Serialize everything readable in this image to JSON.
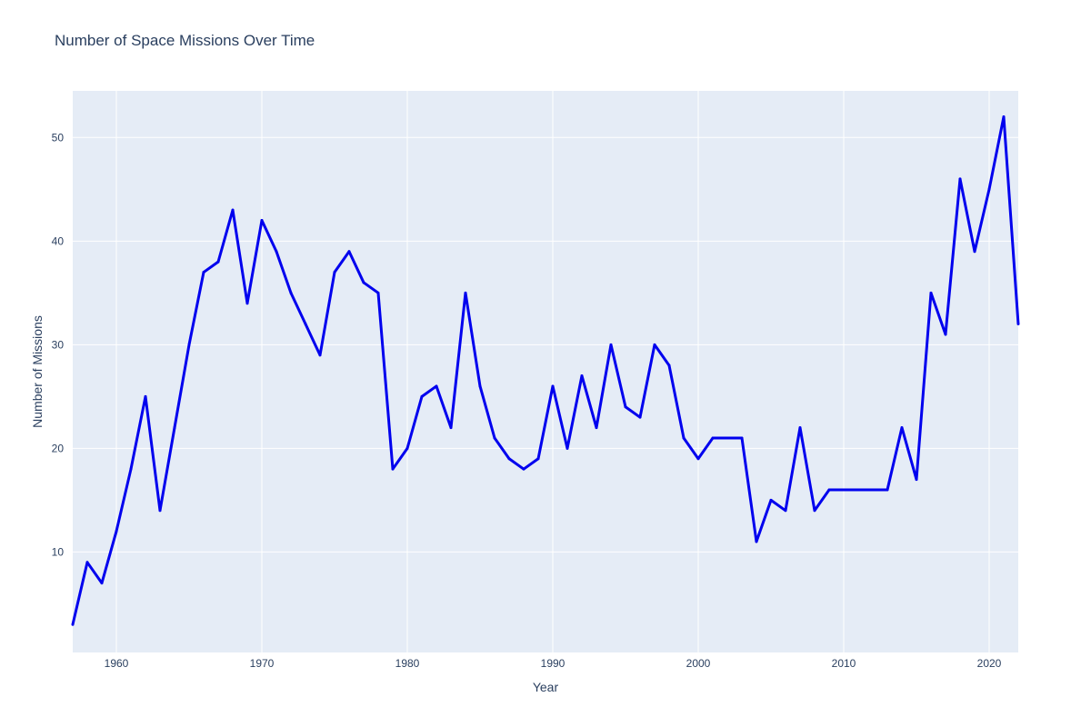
{
  "chart_data": {
    "type": "line",
    "title": "Number of Space Missions Over Time",
    "xlabel": "Year",
    "ylabel": "Number of Missions",
    "xlim": [
      1957,
      2022
    ],
    "ylim": [
      0.3,
      54.5
    ],
    "x_ticks": [
      1960,
      1970,
      1980,
      1990,
      2000,
      2010,
      2020
    ],
    "y_ticks": [
      10,
      20,
      30,
      40,
      50
    ],
    "grid": true,
    "legend": "none",
    "colors": {
      "background": "#e5ecf6",
      "grid": "#ffffff",
      "line": "#0000ee",
      "text": "#2a3f5f"
    },
    "series": [
      {
        "x": [
          1957,
          1958,
          1959,
          1960,
          1961,
          1962,
          1963,
          1964,
          1965,
          1966,
          1967,
          1968,
          1969,
          1970,
          1971,
          1972,
          1973,
          1974,
          1975,
          1976,
          1977,
          1978,
          1979,
          1980,
          1981,
          1982,
          1983,
          1984,
          1985,
          1986,
          1987,
          1988,
          1989,
          1990,
          1991,
          1992,
          1993,
          1994,
          1995,
          1996,
          1997,
          1998,
          1999,
          2000,
          2001,
          2002,
          2003,
          2004,
          2005,
          2006,
          2007,
          2008,
          2009,
          2010,
          2011,
          2012,
          2013,
          2014,
          2015,
          2016,
          2017,
          2018,
          2019,
          2020,
          2021,
          2022
        ],
        "values": [
          3,
          9,
          7,
          12,
          18,
          25,
          14,
          22,
          30,
          37,
          38,
          43,
          34,
          42,
          39,
          35,
          32,
          29,
          37,
          39,
          36,
          35,
          18,
          20,
          25,
          26,
          22,
          35,
          26,
          21,
          19,
          18,
          19,
          26,
          20,
          27,
          22,
          30,
          24,
          23,
          30,
          28,
          21,
          19,
          21,
          21,
          21,
          11,
          15,
          14,
          22,
          14,
          16,
          16,
          16,
          16,
          16,
          22,
          17,
          35,
          31,
          46,
          39,
          45,
          52,
          32
        ]
      }
    ]
  }
}
